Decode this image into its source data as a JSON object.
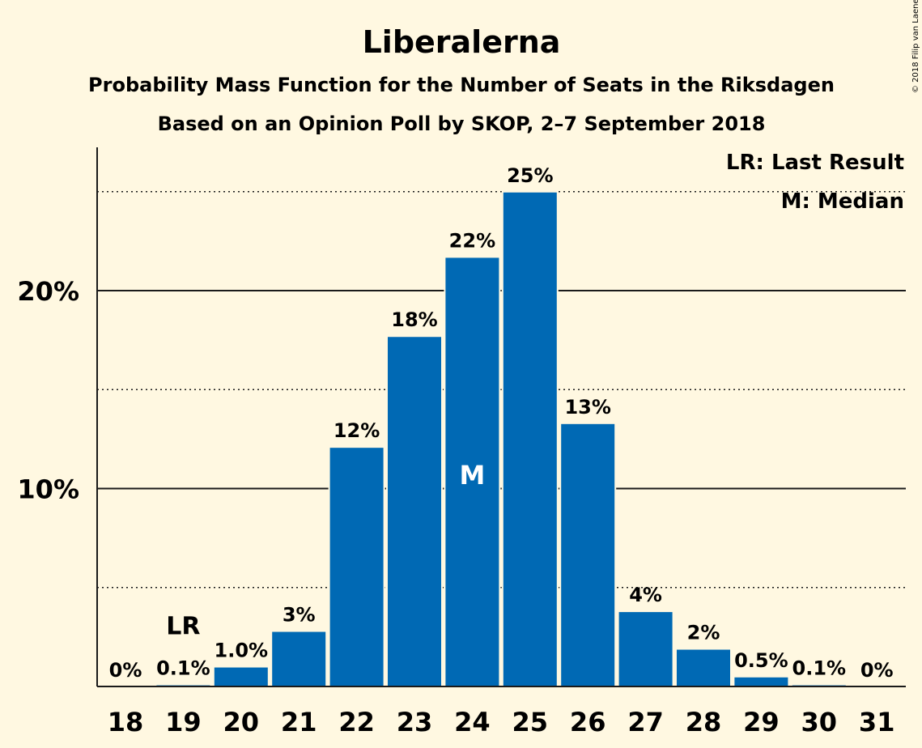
{
  "chart_data": {
    "type": "bar",
    "title": "Liberalerna",
    "subtitle": "Probability Mass Function for the Number of Seats in the Riksdagen",
    "subtitle2": "Based on an Opinion Poll by SKOP, 2–7 September 2018",
    "categories": [
      "18",
      "19",
      "20",
      "21",
      "22",
      "23",
      "24",
      "25",
      "26",
      "27",
      "28",
      "29",
      "30",
      "31"
    ],
    "values": [
      0,
      0.1,
      1.0,
      2.8,
      12.1,
      17.7,
      21.7,
      25.0,
      13.3,
      3.8,
      1.9,
      0.5,
      0.1,
      0
    ],
    "data_labels": [
      "0%",
      "0.1%",
      "1.0%",
      "3%",
      "12%",
      "18%",
      "22%",
      "25%",
      "13%",
      "4%",
      "2%",
      "0.5%",
      "0.1%",
      "0%"
    ],
    "ylim": [
      0,
      27
    ],
    "y_ticks_major": [
      10,
      20
    ],
    "y_tick_labels": [
      "10%",
      "20%"
    ],
    "y_ticks_minor": [
      5,
      15,
      25
    ],
    "grid": true,
    "bar_color": "#0069b4",
    "last_result": {
      "category": "19",
      "label": "LR"
    },
    "median": {
      "category": "24",
      "label": "M"
    },
    "legend": [
      "LR: Last Result",
      "M: Median"
    ],
    "legend_position": "top-right",
    "copyright": "© 2018 Filip van Laenen"
  }
}
